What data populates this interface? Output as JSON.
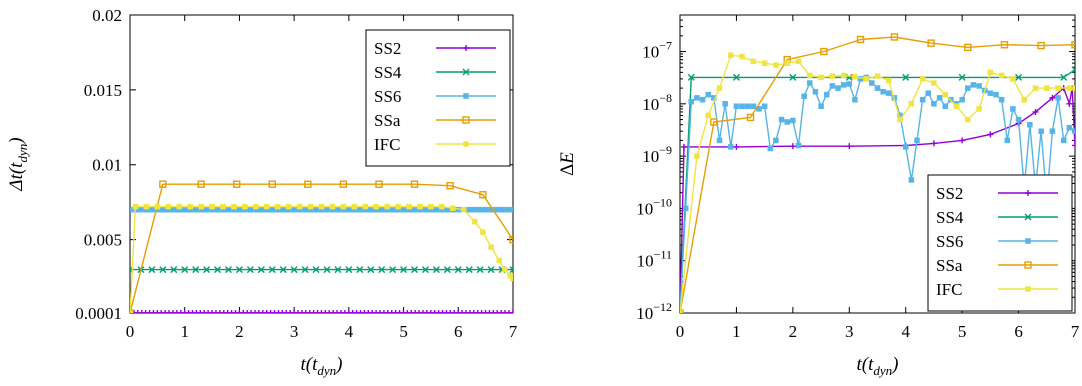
{
  "chart_data": [
    {
      "type": "line",
      "xlabel": "t(t_dyn)",
      "ylabel": "Δt(t_dyn)",
      "xlim": [
        0,
        7
      ],
      "ylim": [
        0.0001,
        0.02
      ],
      "x_ticks": [
        "0",
        "1",
        "2",
        "3",
        "4",
        "5",
        "6",
        "7"
      ],
      "y_ticks": [
        {
          "value": 0.0001,
          "label": "0.0001"
        },
        {
          "value": 0.005,
          "label": "0.005"
        },
        {
          "value": 0.01,
          "label": "0.01"
        },
        {
          "value": 0.015,
          "label": "0.015"
        },
        {
          "value": 0.02,
          "label": "0.02"
        }
      ],
      "legend_position": "top-right",
      "series": [
        {
          "name": "SS2",
          "color": "#9400d3",
          "marker": "plus",
          "points": [
            [
              0,
              0.0001
            ],
            [
              7,
              0.0001
            ]
          ],
          "marker_step": 0.0714
        },
        {
          "name": "SS4",
          "color": "#009e73",
          "marker": "cross",
          "points": [
            [
              0,
              0.003
            ],
            [
              7,
              0.003
            ]
          ],
          "marker_step": 0.2
        },
        {
          "name": "SS6",
          "color": "#56b4e9",
          "marker": "square",
          "points": [
            [
              0,
              0.007
            ],
            [
              7,
              0.007
            ]
          ],
          "marker_step": 0.1
        },
        {
          "name": "SSa",
          "color": "#e69f00",
          "marker": "open-square",
          "points": [
            [
              0,
              0.0001
            ],
            [
              0.6,
              0.0087
            ],
            [
              1.3,
              0.0087
            ],
            [
              1.95,
              0.0087
            ],
            [
              2.6,
              0.0087
            ],
            [
              3.25,
              0.0087
            ],
            [
              3.9,
              0.0087
            ],
            [
              4.55,
              0.0087
            ],
            [
              5.2,
              0.0087
            ],
            [
              5.85,
              0.0086
            ],
            [
              6.45,
              0.008
            ],
            [
              7.0,
              0.005
            ]
          ]
        },
        {
          "name": "IFC",
          "color": "#f0e442",
          "marker": "square",
          "points": [
            [
              0,
              0.0001
            ],
            [
              0.1,
              0.0072
            ],
            [
              0.3,
              0.0072
            ],
            [
              0.5,
              0.0072
            ],
            [
              0.7,
              0.0072
            ],
            [
              0.9,
              0.0072
            ],
            [
              1.1,
              0.0072
            ],
            [
              1.3,
              0.0072
            ],
            [
              1.5,
              0.0072
            ],
            [
              1.7,
              0.0072
            ],
            [
              1.9,
              0.0072
            ],
            [
              2.1,
              0.0072
            ],
            [
              2.3,
              0.0072
            ],
            [
              2.5,
              0.0072
            ],
            [
              2.7,
              0.0072
            ],
            [
              2.9,
              0.0072
            ],
            [
              3.1,
              0.0072
            ],
            [
              3.3,
              0.0072
            ],
            [
              3.5,
              0.0072
            ],
            [
              3.7,
              0.0072
            ],
            [
              3.9,
              0.0072
            ],
            [
              4.1,
              0.0072
            ],
            [
              4.3,
              0.0072
            ],
            [
              4.5,
              0.0072
            ],
            [
              4.7,
              0.0072
            ],
            [
              4.9,
              0.0072
            ],
            [
              5.1,
              0.0072
            ],
            [
              5.3,
              0.0072
            ],
            [
              5.5,
              0.0072
            ],
            [
              5.7,
              0.0072
            ],
            [
              5.9,
              0.0071
            ],
            [
              6.1,
              0.007
            ],
            [
              6.3,
              0.0062
            ],
            [
              6.45,
              0.0055
            ],
            [
              6.6,
              0.0045
            ],
            [
              6.75,
              0.0036
            ],
            [
              6.85,
              0.003
            ],
            [
              6.95,
              0.0026
            ],
            [
              7.0,
              0.0024
            ]
          ]
        }
      ]
    },
    {
      "type": "line",
      "xlabel": "t(t_dyn)",
      "ylabel": "ΔE",
      "xlim": [
        0,
        7
      ],
      "ylim": [
        1e-12,
        5e-07
      ],
      "y_scale": "log",
      "x_ticks": [
        "0",
        "1",
        "2",
        "3",
        "4",
        "5",
        "6",
        "7"
      ],
      "y_ticks": [
        {
          "exp": -12,
          "label": "10",
          "sup": "−12"
        },
        {
          "exp": -11,
          "label": "10",
          "sup": "−11"
        },
        {
          "exp": -10,
          "label": "10",
          "sup": "−10"
        },
        {
          "exp": -9,
          "label": "10",
          "sup": "−9"
        },
        {
          "exp": -8,
          "label": "10",
          "sup": "−8"
        },
        {
          "exp": -7,
          "label": "10",
          "sup": "−7"
        }
      ],
      "legend_position": "bottom-right",
      "series": [
        {
          "name": "SS2",
          "color": "#9400d3",
          "marker": "plus",
          "points": [
            [
              0,
              1e-12
            ],
            [
              0.07,
              1.5e-09
            ],
            [
              1,
              1.5e-09
            ],
            [
              2,
              1.55e-09
            ],
            [
              3,
              1.55e-09
            ],
            [
              4,
              1.6e-09
            ],
            [
              4.5,
              1.75e-09
            ],
            [
              5,
              2e-09
            ],
            [
              5.5,
              2.6e-09
            ],
            [
              6,
              4.2e-09
            ],
            [
              6.3,
              7e-09
            ],
            [
              6.6,
              1.3e-08
            ],
            [
              6.8,
              2e-08
            ],
            [
              6.9,
              1e-08
            ],
            [
              6.95,
              2e-08
            ],
            [
              7.0,
              1.6e-09
            ]
          ]
        },
        {
          "name": "SS4",
          "color": "#009e73",
          "marker": "cross",
          "points": [
            [
              0,
              1e-12
            ],
            [
              0.2,
              3.2e-08
            ],
            [
              1,
              3.2e-08
            ],
            [
              2,
              3.2e-08
            ],
            [
              3,
              3.2e-08
            ],
            [
              4,
              3.2e-08
            ],
            [
              5,
              3.2e-08
            ],
            [
              6,
              3.2e-08
            ],
            [
              6.8,
              3.2e-08
            ],
            [
              7.0,
              4.5e-08
            ]
          ]
        },
        {
          "name": "SS6",
          "color": "#56b4e9",
          "marker": "square",
          "points": [
            [
              0,
              1e-12
            ],
            [
              0.1,
              1e-10
            ],
            [
              0.2,
              1.1e-08
            ],
            [
              0.3,
              1.3e-08
            ],
            [
              0.4,
              1.2e-08
            ],
            [
              0.5,
              1.5e-08
            ],
            [
              0.6,
              1.3e-08
            ],
            [
              0.7,
              2e-09
            ],
            [
              0.8,
              1e-08
            ],
            [
              0.9,
              1.5e-09
            ],
            [
              1.0,
              9e-09
            ],
            [
              1.1,
              9e-09
            ],
            [
              1.2,
              9e-09
            ],
            [
              1.3,
              9e-09
            ],
            [
              1.4,
              8e-09
            ],
            [
              1.5,
              9e-09
            ],
            [
              1.6,
              1.4e-09
            ],
            [
              1.7,
              2e-09
            ],
            [
              1.8,
              5e-09
            ],
            [
              1.9,
              4.5e-09
            ],
            [
              2.0,
              4.8e-09
            ],
            [
              2.1,
              1.6e-09
            ],
            [
              2.2,
              1.4e-08
            ],
            [
              2.3,
              2.5e-08
            ],
            [
              2.4,
              1.7e-08
            ],
            [
              2.5,
              9e-09
            ],
            [
              2.6,
              1.5e-08
            ],
            [
              2.7,
              2.2e-08
            ],
            [
              2.8,
              2e-08
            ],
            [
              2.9,
              2.3e-08
            ],
            [
              3.0,
              2.4e-08
            ],
            [
              3.1,
              1.2e-08
            ],
            [
              3.2,
              3e-08
            ],
            [
              3.3,
              3.2e-08
            ],
            [
              3.4,
              2.5e-08
            ],
            [
              3.5,
              2e-08
            ],
            [
              3.6,
              1.7e-08
            ],
            [
              3.7,
              1.6e-08
            ],
            [
              3.8,
              1.3e-08
            ],
            [
              3.9,
              6e-09
            ],
            [
              4.0,
              1.5e-09
            ],
            [
              4.1,
              3.5e-10
            ],
            [
              4.2,
              2e-09
            ],
            [
              4.3,
              1.2e-08
            ],
            [
              4.4,
              1.6e-08
            ],
            [
              4.5,
              1e-08
            ],
            [
              4.6,
              1.3e-08
            ],
            [
              4.7,
              9e-09
            ],
            [
              4.8,
              1.2e-08
            ],
            [
              4.9,
              1e-08
            ],
            [
              5.0,
              1.2e-08
            ],
            [
              5.1,
              2e-08
            ],
            [
              5.2,
              2.3e-08
            ],
            [
              5.3,
              2.2e-08
            ],
            [
              5.4,
              1.8e-08
            ],
            [
              5.5,
              1.6e-08
            ],
            [
              5.6,
              1.5e-08
            ],
            [
              5.7,
              1.2e-08
            ],
            [
              5.8,
              2e-09
            ],
            [
              5.9,
              8e-09
            ],
            [
              6.0,
              5e-09
            ],
            [
              6.1,
              2.5e-10
            ],
            [
              6.2,
              4e-09
            ],
            [
              6.3,
              2.5e-10
            ],
            [
              6.4,
              3e-09
            ],
            [
              6.5,
              1.5e-10
            ],
            [
              6.6,
              3e-09
            ],
            [
              6.7,
              1.3e-08
            ],
            [
              6.8,
              2e-09
            ],
            [
              6.9,
              3.5e-09
            ],
            [
              7.0,
              3e-09
            ]
          ]
        },
        {
          "name": "SSa",
          "color": "#e69f00",
          "marker": "open-square",
          "points": [
            [
              0,
              1e-12
            ],
            [
              0.6,
              4.5e-09
            ],
            [
              1.25,
              5.5e-09
            ],
            [
              1.9,
              7e-08
            ],
            [
              2.55,
              1e-07
            ],
            [
              3.2,
              1.7e-07
            ],
            [
              3.8,
              1.9e-07
            ],
            [
              4.45,
              1.45e-07
            ],
            [
              5.1,
              1.2e-07
            ],
            [
              5.75,
              1.35e-07
            ],
            [
              6.4,
              1.3e-07
            ],
            [
              7.0,
              1.35e-07
            ]
          ]
        },
        {
          "name": "IFC",
          "color": "#f0e442",
          "marker": "square",
          "points": [
            [
              0,
              1e-12
            ],
            [
              0.3,
              1e-09
            ],
            [
              0.5,
              6e-09
            ],
            [
              0.7,
              2e-08
            ],
            [
              0.9,
              8.5e-08
            ],
            [
              1.1,
              8e-08
            ],
            [
              1.3,
              6.5e-08
            ],
            [
              1.5,
              6e-08
            ],
            [
              1.7,
              5.5e-08
            ],
            [
              1.9,
              6e-08
            ],
            [
              2.1,
              6.5e-08
            ],
            [
              2.3,
              3.5e-08
            ],
            [
              2.5,
              3.2e-08
            ],
            [
              2.7,
              3.4e-08
            ],
            [
              2.9,
              3.5e-08
            ],
            [
              3.1,
              3.3e-08
            ],
            [
              3.3,
              3e-08
            ],
            [
              3.5,
              3.4e-08
            ],
            [
              3.7,
              2.8e-08
            ],
            [
              3.9,
              5e-09
            ],
            [
              4.1,
              1e-08
            ],
            [
              4.3,
              3e-08
            ],
            [
              4.5,
              2.5e-08
            ],
            [
              4.7,
              1.5e-08
            ],
            [
              4.9,
              9e-09
            ],
            [
              5.1,
              5e-09
            ],
            [
              5.3,
              8e-09
            ],
            [
              5.5,
              4e-08
            ],
            [
              5.7,
              3.5e-08
            ],
            [
              5.9,
              3e-08
            ],
            [
              6.1,
              1.2e-08
            ],
            [
              6.3,
              2e-08
            ],
            [
              6.5,
              2e-08
            ],
            [
              6.7,
              2e-08
            ],
            [
              6.9,
              2e-08
            ],
            [
              7.0,
              2e-08
            ]
          ]
        }
      ]
    }
  ]
}
